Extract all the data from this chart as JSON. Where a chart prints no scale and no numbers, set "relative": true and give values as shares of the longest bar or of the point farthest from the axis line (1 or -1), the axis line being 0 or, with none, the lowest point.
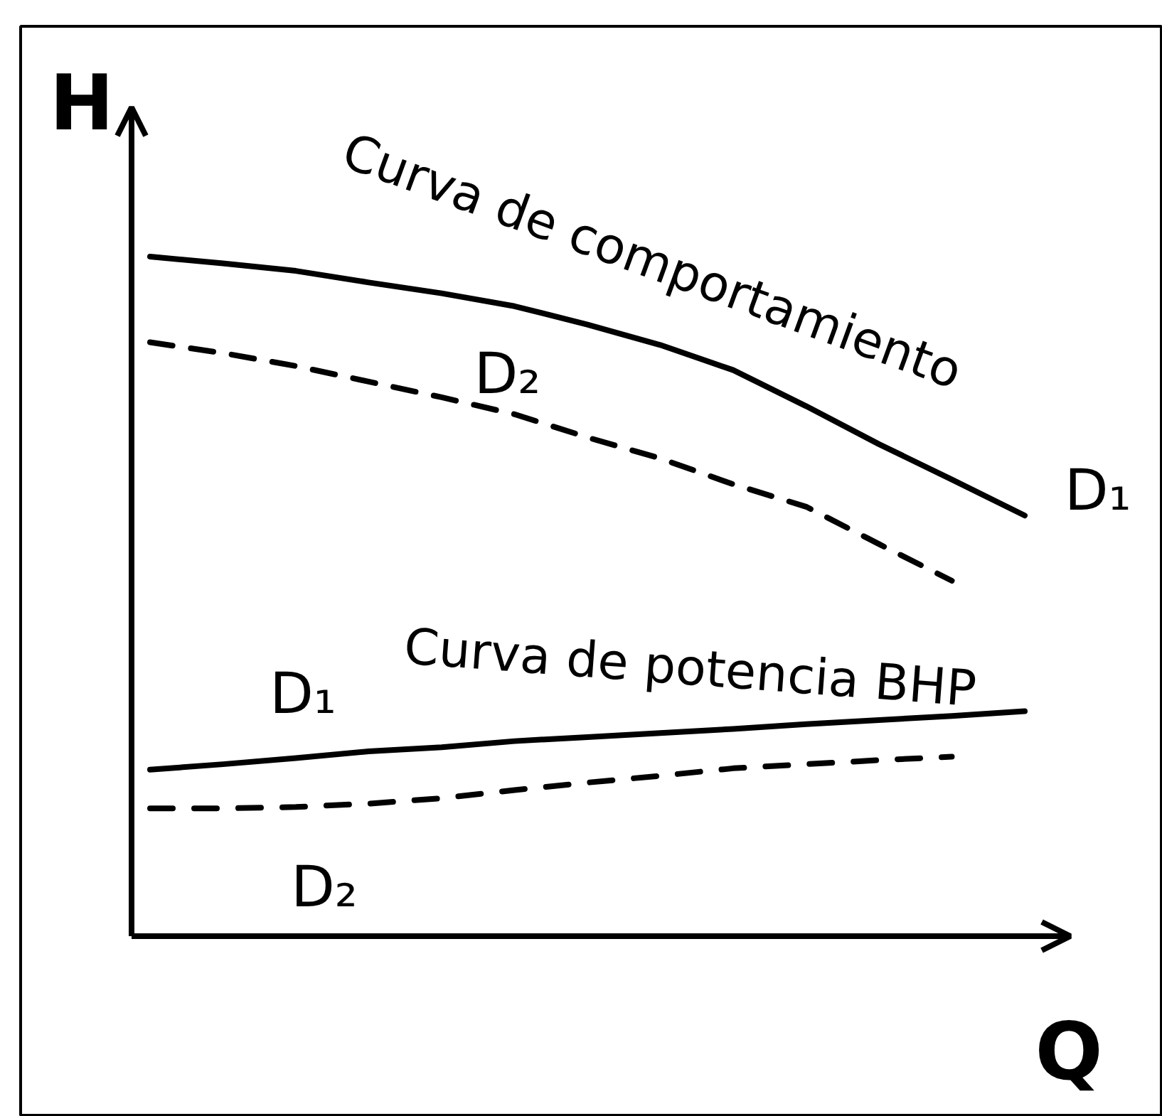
{
  "chart_data": {
    "type": "line",
    "relative": true,
    "xlabel": "Q",
    "ylabel": "H",
    "categories": [
      null,
      null,
      null,
      null,
      null,
      null,
      null,
      null,
      null,
      null,
      null,
      null,
      null
    ],
    "series": [
      {
        "name": "D₁",
        "color": "#000000",
        "line_style": "solid",
        "values": [
          1.0,
          0.99,
          0.979,
          0.962,
          0.946,
          0.927,
          0.9,
          0.87,
          0.833,
          0.78,
          0.724,
          0.672,
          0.619
        ]
      },
      {
        "name": "D₂",
        "color": "#000000",
        "line_style": "dashed",
        "values": [
          0.874,
          0.858,
          0.839,
          0.816,
          0.793,
          0.768,
          0.734,
          0.703,
          0.665,
          0.632,
          0.577,
          0.523,
          null
        ]
      },
      {
        "name": "D₁",
        "color": "#000000",
        "line_style": "solid",
        "values": [
          0.245,
          0.253,
          0.262,
          0.272,
          0.278,
          0.287,
          0.293,
          0.299,
          0.305,
          0.312,
          0.318,
          0.324,
          0.331
        ]
      },
      {
        "name": "D₂",
        "color": "#000000",
        "line_style": "dashed",
        "values": [
          0.188,
          0.188,
          0.19,
          0.195,
          0.203,
          0.215,
          0.226,
          0.236,
          0.247,
          0.253,
          0.259,
          0.264,
          null
        ]
      }
    ],
    "annotations": [
      "Curva de comportamiento",
      "Curva de potencia BHP"
    ]
  }
}
